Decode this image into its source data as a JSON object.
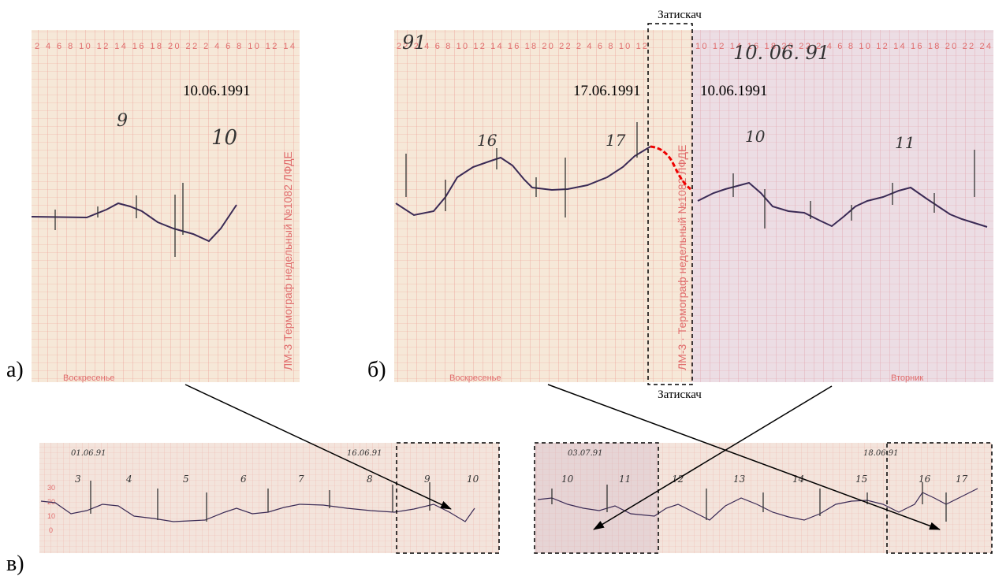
{
  "figure": {
    "panel_a": {
      "label": "а)",
      "date": "10.06.1991",
      "day_marks": [
        "9",
        "10"
      ],
      "hour_scale": "2 4 6 8 10 12 14 16 18 20 22 2 4 6 8 10 12 14",
      "paper_text": "ЛМ-3 Термограф недельный №1082 ЛФДЕ",
      "weekday": "Воскресенье"
    },
    "panel_b": {
      "label": "б)",
      "date_left": "17.06.1991",
      "date_right": "10.06.1991",
      "day_marks": [
        "16",
        "17",
        "10",
        "11"
      ],
      "hour_scale_left": "22 2 4 6 8 10 12 14 16 18 20 22 2 4 6 8 10 12",
      "hour_scale_right": "10 12 14 16 18 20 22 2 4 6 8 10 12 14 16 18 20 22 24",
      "handwritten_left": "91",
      "handwritten_right": "10. 06. 91",
      "paper_text": "ЛМ-3 · Термограф недельный №1082 ЛФДЕ",
      "weekday_left": "Воскресенье",
      "weekday_right": "Вторник",
      "clamp_top": "Затискач",
      "clamp_bottom": "Затискач"
    },
    "panel_c": {
      "label": "в)",
      "strip_left_dates": [
        "01.06.91",
        "16.06.91"
      ],
      "strip_left_days": [
        "3",
        "4",
        "5",
        "6",
        "7",
        "8",
        "9",
        "10"
      ],
      "strip_left_scale": [
        "30",
        "20",
        "10",
        "0"
      ],
      "strip_right_dates": [
        "03.07.91",
        "18.06.91"
      ],
      "strip_right_days": [
        "10",
        "11",
        "12",
        "13",
        "14",
        "15",
        "16",
        "17"
      ]
    }
  }
}
